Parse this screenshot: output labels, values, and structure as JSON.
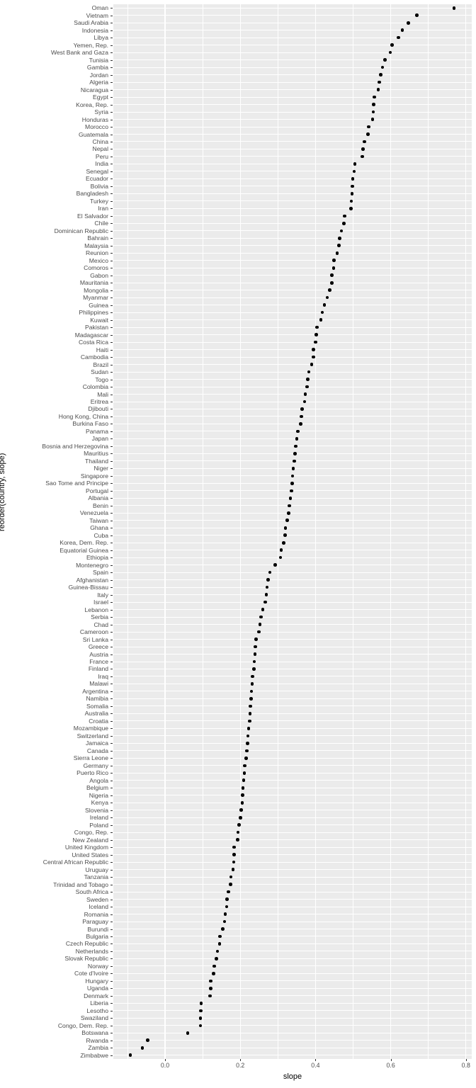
{
  "chart_data": {
    "type": "scatter",
    "title": "",
    "xlabel": "slope",
    "ylabel": "reorder(country, slope)",
    "legend_position": "none",
    "grid": "major and minor, white on gray panel",
    "xlim": [
      -0.1375,
      0.815
    ],
    "x_ticks": [
      0.0,
      0.2,
      0.4,
      0.6,
      0.8
    ],
    "x_tick_labels": [
      "0.0",
      "0.2",
      "0.4",
      "0.6",
      "0.8"
    ],
    "x_minor_ticks": [
      -0.1,
      0.1,
      0.3,
      0.5,
      0.7
    ],
    "colors": {
      "panel_background": "#EBEBEB",
      "gridline": "#FFFFFF",
      "point": "#000000",
      "tick_label": "#4D4D4D",
      "tick_mark": "#333333",
      "axis_title": "#000000"
    },
    "categories": [
      "Oman",
      "Vietnam",
      "Saudi Arabia",
      "Indonesia",
      "Libya",
      "Yemen, Rep.",
      "West Bank and Gaza",
      "Tunisia",
      "Gambia",
      "Jordan",
      "Algeria",
      "Nicaragua",
      "Egypt",
      "Korea, Rep.",
      "Syria",
      "Honduras",
      "Morocco",
      "Guatemala",
      "China",
      "Nepal",
      "Peru",
      "India",
      "Senegal",
      "Ecuador",
      "Bolivia",
      "Bangladesh",
      "Turkey",
      "Iran",
      "El Salvador",
      "Chile",
      "Dominican Republic",
      "Bahrain",
      "Malaysia",
      "Reunion",
      "Mexico",
      "Comoros",
      "Gabon",
      "Mauritania",
      "Mongolia",
      "Myanmar",
      "Guinea",
      "Philippines",
      "Kuwait",
      "Pakistan",
      "Madagascar",
      "Costa Rica",
      "Haiti",
      "Cambodia",
      "Brazil",
      "Sudan",
      "Togo",
      "Colombia",
      "Mali",
      "Eritrea",
      "Djibouti",
      "Hong Kong, China",
      "Burkina Faso",
      "Panama",
      "Japan",
      "Bosnia and Herzegovina",
      "Mauritius",
      "Thailand",
      "Niger",
      "Singapore",
      "Sao Tome and Principe",
      "Portugal",
      "Albania",
      "Benin",
      "Venezuela",
      "Taiwan",
      "Ghana",
      "Cuba",
      "Korea, Dem. Rep.",
      "Equatorial Guinea",
      "Ethiopia",
      "Montenegro",
      "Spain",
      "Afghanistan",
      "Guinea-Bissau",
      "Italy",
      "Israel",
      "Lebanon",
      "Serbia",
      "Chad",
      "Cameroon",
      "Sri Lanka",
      "Greece",
      "Austria",
      "France",
      "Finland",
      "Iraq",
      "Malawi",
      "Argentina",
      "Namibia",
      "Somalia",
      "Australia",
      "Croatia",
      "Mozambique",
      "Switzerland",
      "Jamaica",
      "Canada",
      "Sierra Leone",
      "Germany",
      "Puerto Rico",
      "Angola",
      "Belgium",
      "Nigeria",
      "Kenya",
      "Slovenia",
      "Ireland",
      "Poland",
      "Congo, Rep.",
      "New Zealand",
      "United Kingdom",
      "United States",
      "Central African Republic",
      "Uruguay",
      "Tanzania",
      "Trinidad and Tobago",
      "South Africa",
      "Sweden",
      "Iceland",
      "Romania",
      "Paraguay",
      "Burundi",
      "Bulgaria",
      "Czech Republic",
      "Netherlands",
      "Slovak Republic",
      "Norway",
      "Cote d'Ivoire",
      "Hungary",
      "Uganda",
      "Denmark",
      "Liberia",
      "Lesotho",
      "Swaziland",
      "Congo, Dem. Rep.",
      "Botswana",
      "Rwanda",
      "Zambia",
      "Zimbabwe"
    ],
    "values": [
      0.768,
      0.669,
      0.647,
      0.631,
      0.621,
      0.604,
      0.599,
      0.585,
      0.578,
      0.574,
      0.57,
      0.567,
      0.556,
      0.555,
      0.554,
      0.552,
      0.541,
      0.539,
      0.53,
      0.526,
      0.525,
      0.505,
      0.503,
      0.499,
      0.498,
      0.497,
      0.495,
      0.494,
      0.477,
      0.476,
      0.469,
      0.464,
      0.462,
      0.458,
      0.449,
      0.448,
      0.444,
      0.443,
      0.438,
      0.431,
      0.424,
      0.418,
      0.414,
      0.404,
      0.402,
      0.4,
      0.395,
      0.394,
      0.39,
      0.382,
      0.379,
      0.378,
      0.373,
      0.371,
      0.364,
      0.362,
      0.361,
      0.353,
      0.35,
      0.348,
      0.346,
      0.344,
      0.341,
      0.339,
      0.338,
      0.336,
      0.333,
      0.331,
      0.329,
      0.325,
      0.32,
      0.319,
      0.315,
      0.309,
      0.307,
      0.293,
      0.279,
      0.274,
      0.271,
      0.269,
      0.267,
      0.26,
      0.255,
      0.252,
      0.25,
      0.242,
      0.24,
      0.239,
      0.237,
      0.236,
      0.233,
      0.232,
      0.23,
      0.229,
      0.227,
      0.226,
      0.225,
      0.222,
      0.22,
      0.219,
      0.218,
      0.216,
      0.212,
      0.211,
      0.209,
      0.207,
      0.206,
      0.205,
      0.203,
      0.201,
      0.197,
      0.194,
      0.193,
      0.184,
      0.184,
      0.183,
      0.181,
      0.175,
      0.174,
      0.169,
      0.165,
      0.164,
      0.16,
      0.158,
      0.154,
      0.146,
      0.145,
      0.139,
      0.136,
      0.131,
      0.129,
      0.122,
      0.122,
      0.12,
      0.096,
      0.095,
      0.094,
      0.094,
      0.06,
      -0.046,
      -0.06,
      -0.092
    ]
  }
}
